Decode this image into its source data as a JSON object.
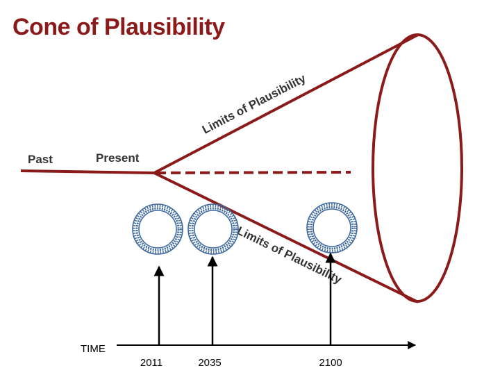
{
  "slide": {
    "title": "Cone of Plausibility",
    "labels": {
      "past": "Past",
      "present": "Present",
      "limit_upper": "Limits of Plausibility",
      "limit_lower": "Limits of Plausibility"
    },
    "timeline": {
      "axis_label": "TIME",
      "years": [
        "2011",
        "2035",
        "2100"
      ]
    },
    "colors": {
      "cone": "#8b1a1a",
      "ring": "#3f6aa0",
      "ink": "#000000"
    },
    "icons": [
      "scenario-ring-icon",
      "scenario-ring-icon",
      "scenario-ring-icon"
    ]
  }
}
